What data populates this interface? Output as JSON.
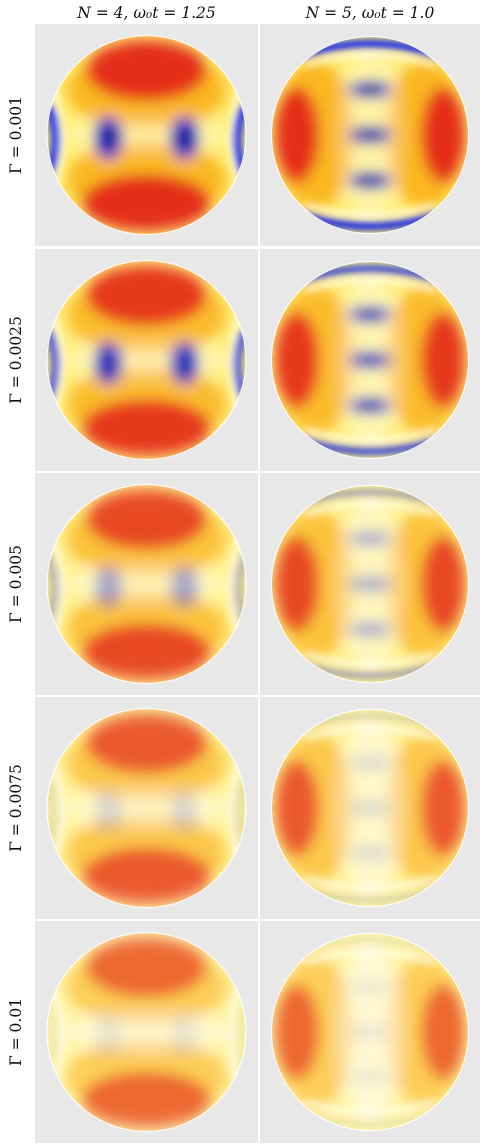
{
  "columns": [
    {
      "id": "c0",
      "title": "N = 4, ω₀t = 1.25",
      "pattern": "a"
    },
    {
      "id": "c1",
      "title": "N = 5, ω₀t = 1.0",
      "pattern": "b"
    }
  ],
  "rows": [
    {
      "id": "r0",
      "label": "Γ = 0.001",
      "saturation": 1.0,
      "blue_strength": 1.0
    },
    {
      "id": "r1",
      "label": "Γ = 0.0025",
      "saturation": 0.92,
      "blue_strength": 0.8
    },
    {
      "id": "r2",
      "label": "Γ = 0.005",
      "saturation": 0.82,
      "blue_strength": 0.35
    },
    {
      "id": "r3",
      "label": "Γ = 0.0075",
      "saturation": 0.72,
      "blue_strength": 0.14
    },
    {
      "id": "r4",
      "label": "Γ = 0.01",
      "saturation": 0.65,
      "blue_strength": 0.08
    }
  ],
  "colors": {
    "panel_background": "#e8e8e8",
    "red": "#e3261a",
    "orange": "#f8a000",
    "yellow": "#ffe000",
    "white": "#ffffff",
    "blue": "#1a2ee6",
    "dark_blue": "#06105a"
  }
}
